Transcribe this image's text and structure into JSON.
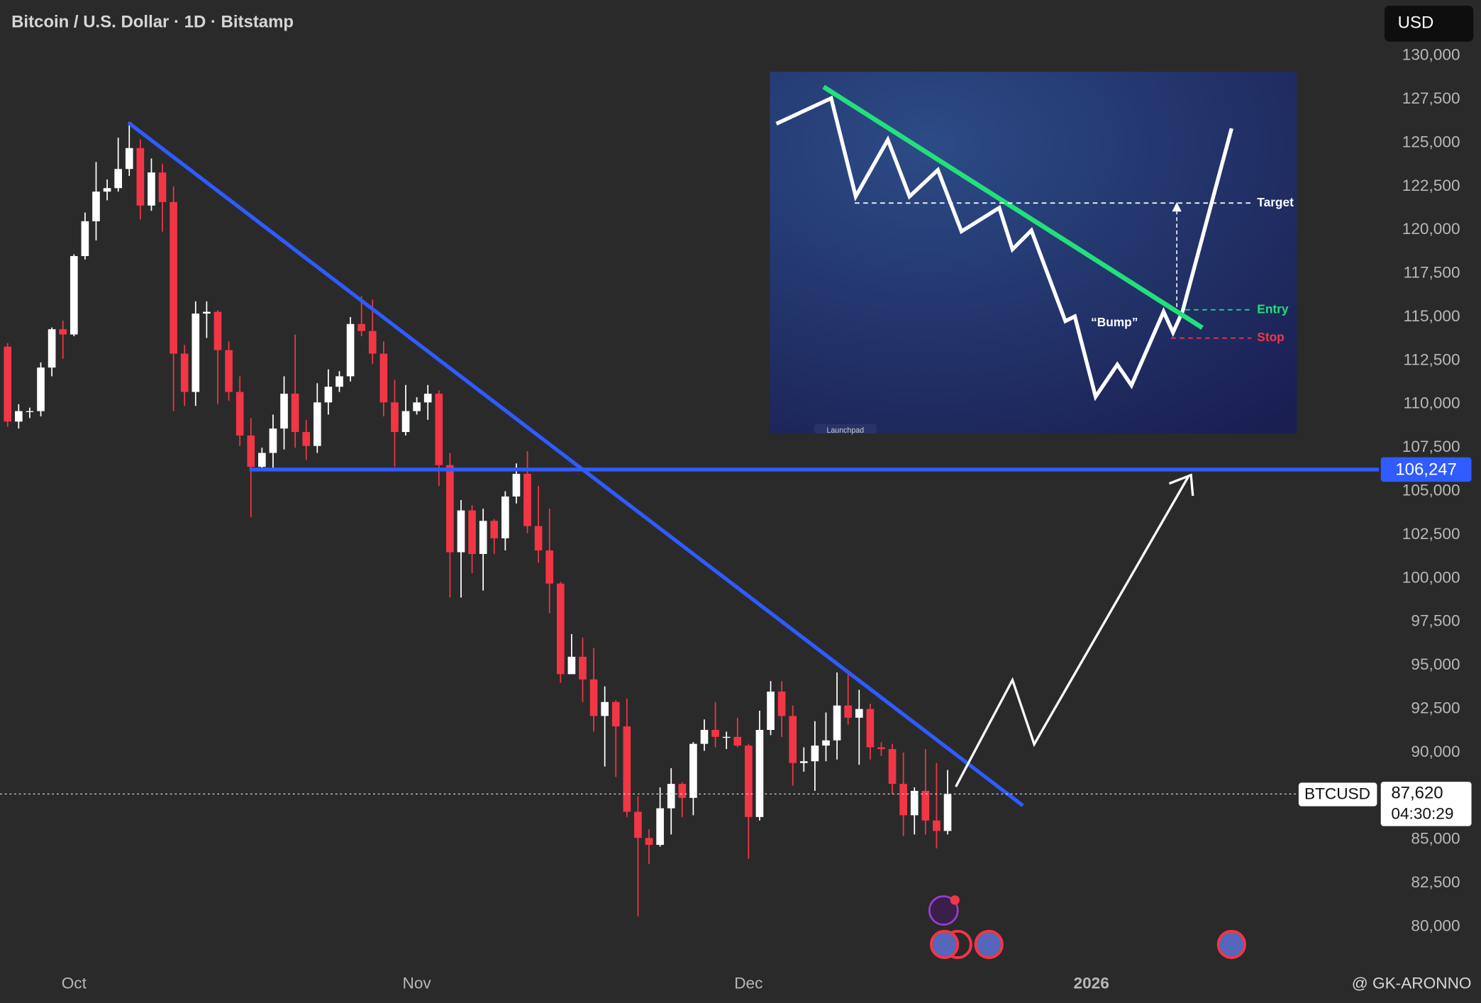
{
  "header": {
    "title": "Bitcoin / U.S. Dollar · 1D · Bitstamp",
    "currency": "USD",
    "watermark": "@ GK-ARONNO"
  },
  "chart_data": {
    "type": "candlestick",
    "up_color": "#ffffff",
    "down_color": "#f23645",
    "open": [
      113300,
      109000,
      109600,
      109600,
      112100,
      114300,
      114000,
      118500,
      120500,
      122200,
      122400,
      123500,
      124700,
      121400,
      123300,
      121600,
      112900,
      110700,
      115200,
      115300,
      113100,
      110700,
      108200,
      106400,
      107200,
      108600,
      110600,
      108400,
      107600,
      110100,
      111000,
      111600,
      114600,
      114200,
      112900,
      110100,
      108400,
      109600,
      110100,
      110600,
      106500,
      101500,
      103900,
      101400,
      103300,
      102300,
      104700,
      106000,
      103000,
      101600,
      99700,
      94500,
      95500,
      94200,
      92100,
      92900,
      91500,
      86600,
      85100,
      84700,
      86800,
      88200,
      87400,
      90500,
      91300,
      90900,
      90900,
      90400,
      86300,
      91300,
      93500,
      92100,
      89400,
      89500,
      90400,
      90700,
      92700,
      92000,
      92500,
      90300,
      90200,
      88200,
      86400,
      87800,
      86100,
      85500
    ],
    "high": [
      113500,
      110000,
      109800,
      112400,
      114400,
      114800,
      118600,
      121000,
      123900,
      122900,
      125300,
      126200,
      125200,
      124100,
      123800,
      122500,
      113400,
      115900,
      115900,
      115400,
      113600,
      111600,
      109200,
      107500,
      109400,
      111600,
      114000,
      109100,
      111200,
      112000,
      111900,
      115000,
      116200,
      116000,
      113600,
      111400,
      111100,
      110400,
      111100,
      110800,
      107200,
      104500,
      104200,
      104000,
      103400,
      105000,
      106600,
      107300,
      105300,
      104000,
      99800,
      96800,
      96600,
      96000,
      93800,
      93000,
      93100,
      87500,
      85600,
      88000,
      89100,
      88300,
      90600,
      91900,
      92900,
      91200,
      92000,
      90500,
      92400,
      94100,
      94100,
      92700,
      90300,
      91800,
      92300,
      94600,
      94500,
      93600,
      92800,
      90600,
      90500,
      90000,
      88000,
      90200,
      89400,
      89000
    ],
    "low": [
      108700,
      108600,
      109200,
      109300,
      111600,
      112600,
      113900,
      118300,
      119400,
      121700,
      122200,
      123100,
      120600,
      121100,
      119900,
      109600,
      109900,
      109900,
      113800,
      110000,
      110200,
      107600,
      103500,
      106300,
      106200,
      107400,
      107500,
      106800,
      107200,
      109400,
      110700,
      111300,
      113900,
      112300,
      109300,
      106400,
      108200,
      109400,
      109100,
      105300,
      98900,
      98900,
      100300,
      99300,
      101400,
      101600,
      104300,
      102600,
      100900,
      98000,
      94000,
      94500,
      92900,
      91200,
      89200,
      88600,
      86300,
      80600,
      83600,
      84600,
      85300,
      86300,
      86400,
      90100,
      90300,
      90200,
      90300,
      83900,
      86100,
      91000,
      90900,
      88100,
      88900,
      87800,
      89500,
      89600,
      91600,
      89300,
      89600,
      89800,
      87600,
      85200,
      85300,
      85300,
      84500,
      85300
    ],
    "close": [
      109000,
      109600,
      109600,
      112100,
      114300,
      114000,
      118500,
      120500,
      122200,
      122400,
      123500,
      124700,
      121400,
      123300,
      121600,
      112900,
      110700,
      115200,
      115300,
      113100,
      110700,
      108200,
      106400,
      107200,
      108600,
      110600,
      108400,
      107600,
      110100,
      111000,
      111600,
      114600,
      114200,
      112900,
      110100,
      108400,
      109600,
      110100,
      110600,
      106500,
      101500,
      103900,
      101400,
      103300,
      102300,
      104700,
      106000,
      103000,
      101600,
      99700,
      94500,
      95500,
      94200,
      92100,
      92900,
      91500,
      86600,
      85100,
      84700,
      86800,
      88200,
      87400,
      90500,
      91300,
      90900,
      90900,
      90400,
      86300,
      91300,
      93500,
      92100,
      89400,
      89500,
      90400,
      90700,
      92700,
      92000,
      92500,
      90300,
      90200,
      88200,
      86400,
      87800,
      86100,
      85500,
      87620
    ],
    "xlim": [
      -0.68,
      124
    ],
    "xticks": [
      {
        "value": 6,
        "label": "Oct"
      },
      {
        "value": 37,
        "label": "Nov"
      },
      {
        "value": 67,
        "label": "Dec"
      },
      {
        "value": 98,
        "label": "2026"
      }
    ],
    "ylim": [
      77900,
      133200
    ],
    "yticks": [
      {
        "value": 80000,
        "label": "80,000"
      },
      {
        "value": 82500,
        "label": "82,500"
      },
      {
        "value": 85000,
        "label": "85,000"
      },
      {
        "value": 87500,
        "label": "87,500"
      },
      {
        "value": 90000,
        "label": "90,000"
      },
      {
        "value": 92500,
        "label": "92,500"
      },
      {
        "value": 95000,
        "label": "95,000"
      },
      {
        "value": 97500,
        "label": "97,500"
      },
      {
        "value": 100000,
        "label": "100,000"
      },
      {
        "value": 102500,
        "label": "102,500"
      },
      {
        "value": 105000,
        "label": "105,000"
      },
      {
        "value": 107500,
        "label": "107,500"
      },
      {
        "value": 110000,
        "label": "110,000"
      },
      {
        "value": 112500,
        "label": "112,500"
      },
      {
        "value": 115000,
        "label": "115,000"
      },
      {
        "value": 117500,
        "label": "117,500"
      },
      {
        "value": 120000,
        "label": "120,000"
      },
      {
        "value": 122500,
        "label": "122,500"
      },
      {
        "value": 125000,
        "label": "125,000"
      },
      {
        "value": 127500,
        "label": "127,500"
      },
      {
        "value": 130000,
        "label": "130,000"
      }
    ],
    "support_level": {
      "value": 106247,
      "label": "106,247",
      "color": "#2f5bff"
    },
    "last_price": {
      "symbol": "BTCUSD",
      "value": 87620,
      "label": "87,620",
      "countdown": "04:30:29"
    }
  },
  "inset": {
    "target": "Target",
    "entry": "Entry",
    "stop": "Stop",
    "bump": "“Bump”",
    "badge": "Launchpad"
  }
}
